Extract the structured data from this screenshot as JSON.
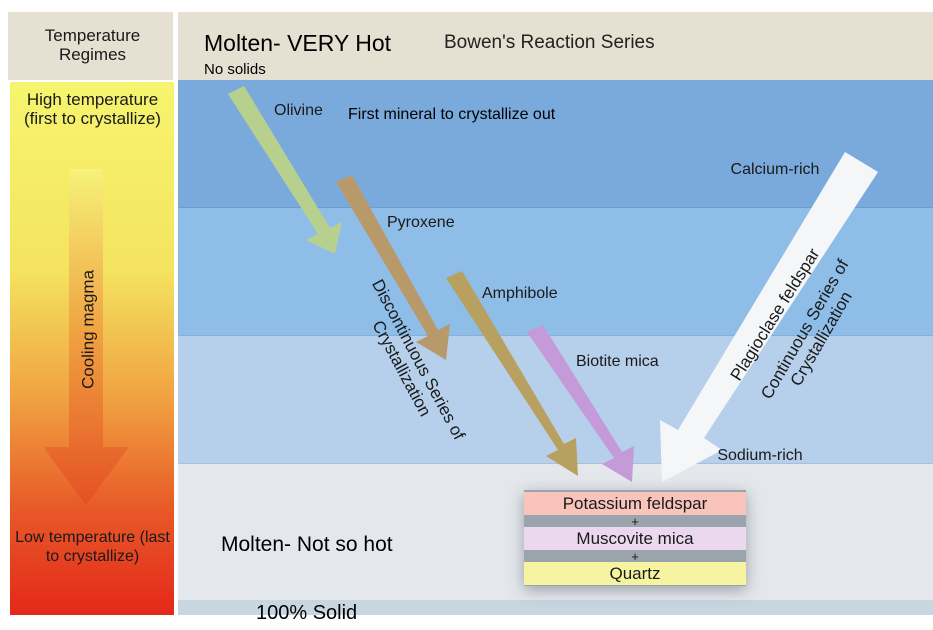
{
  "header": {
    "left_title": "Temperature Regimes",
    "main_title": "Molten- VERY Hot",
    "main_subtitle": "No solids",
    "series_title": "Bowen's Reaction Series"
  },
  "left_column": {
    "top_label": "High temperature (first to crystallize)",
    "arrow_label": "Cooling magma",
    "bottom_label": "Low temperature (last to crystallize)"
  },
  "minerals": {
    "olivine": "Olivine",
    "olivine_note": "First mineral to crystallize out",
    "pyroxene": "Pyroxene",
    "amphibole": "Amphibole",
    "biotite": "Biotite mica",
    "plagioclase": "Plagioclase feldspar",
    "calcium": "Calcium-rich",
    "sodium": "Sodium-rich",
    "discontinuous": "Discontinuous Series of Crystallization",
    "continuous": "Continuous Series of Crystallization"
  },
  "final_box": {
    "items": [
      "Potassium feldspar",
      "Muscovite mica",
      "Quartz"
    ],
    "plus": "+"
  },
  "bottom": {
    "note": "Molten- Not so hot",
    "solid": "100% Solid"
  },
  "colors": {
    "olivine": "#b8d08e",
    "pyroxene": "#b89a6a",
    "amphibole": "#b8a060",
    "biotite": "#c49ad8",
    "plagioclase": "#f4f6f8",
    "band1": "#7aaadc",
    "band2": "#8ebde8",
    "band3": "#b6cfea",
    "band4": "#e4e8ec"
  }
}
